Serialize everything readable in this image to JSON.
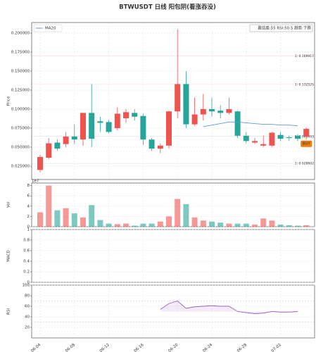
{
  "chart_data": [
    {
      "type": "candlestick",
      "title": "BTWUSDT  日线  阳包阴(看涨吞没)",
      "ylabel": "Price",
      "categories": [
        "06-04",
        null,
        null,
        null,
        "06-08",
        null,
        null,
        null,
        "06-12",
        null,
        null,
        null,
        "06-16",
        null,
        null,
        null,
        "06-20",
        null,
        null,
        null,
        "06-24",
        null,
        null,
        null,
        "06-28",
        null,
        null,
        null,
        "07-02",
        null,
        null,
        null
      ],
      "open": [
        0.02,
        0.036,
        0.056,
        0.054,
        0.064,
        0.06,
        0.095,
        0.084,
        0.083,
        0.075,
        0.088,
        0.095,
        0.091,
        0.06,
        0.048,
        0.052,
        0.097,
        0.133,
        0.08,
        0.093,
        0.1,
        0.098,
        0.095,
        0.097,
        0.065,
        0.056,
        0.052,
        0.052,
        0.066,
        0.063,
        0.065,
        0.064
      ],
      "high": [
        0.04,
        0.062,
        0.06,
        0.07,
        0.08,
        0.095,
        0.133,
        0.09,
        0.086,
        0.102,
        0.1,
        0.1,
        0.094,
        0.062,
        0.055,
        0.098,
        0.205,
        0.15,
        0.115,
        0.12,
        0.115,
        0.105,
        0.115,
        0.098,
        0.07,
        0.062,
        0.065,
        0.07,
        0.07,
        0.065,
        0.067,
        0.076
      ],
      "low": [
        0.017,
        0.034,
        0.045,
        0.05,
        0.054,
        0.052,
        0.05,
        0.07,
        0.068,
        0.072,
        0.082,
        0.085,
        0.053,
        0.045,
        0.042,
        0.048,
        0.088,
        0.075,
        0.078,
        0.085,
        0.09,
        0.088,
        0.093,
        0.062,
        0.055,
        0.054,
        0.05,
        0.05,
        0.058,
        0.058,
        0.058,
        0.06
      ],
      "close": [
        0.037,
        0.055,
        0.048,
        0.064,
        0.06,
        0.095,
        0.061,
        0.082,
        0.07,
        0.094,
        0.096,
        0.09,
        0.06,
        0.048,
        0.052,
        0.097,
        0.133,
        0.08,
        0.093,
        0.1,
        0.097,
        0.095,
        0.1,
        0.065,
        0.058,
        0.058,
        0.054,
        0.069,
        0.061,
        0.062,
        0.061,
        0.074
      ],
      "up_color": "#ef5350",
      "down_color": "#26a69a",
      "series": [
        {
          "name": "MA20",
          "color": "#5b9bd5",
          "values": [
            null,
            null,
            null,
            null,
            null,
            null,
            null,
            null,
            null,
            null,
            null,
            null,
            null,
            null,
            null,
            null,
            null,
            null,
            null,
            0.077,
            0.079,
            0.081,
            0.083,
            0.083,
            0.082,
            0.081,
            0.08,
            0.08,
            0.079,
            0.079,
            0.078,
            null
          ]
        }
      ],
      "ylim": [
        0.0074,
        0.2139
      ],
      "yticks": [
        {
          "value": 0.025,
          "label": "0.025000"
        },
        {
          "value": 0.05,
          "label": "0.050000"
        },
        {
          "value": 0.075,
          "label": "0.075000"
        },
        {
          "value": 0.1,
          "label": "0.100000"
        },
        {
          "value": 0.125,
          "label": "0.125000"
        },
        {
          "value": 0.15,
          "label": "0.150000"
        },
        {
          "value": 0.175,
          "label": "0.175000"
        },
        {
          "value": 0.2,
          "label": "0.200000"
        }
      ],
      "grid": true,
      "legend": "upper left",
      "info": "置信度:55  RSI:50.5  趋势:下跌",
      "levels": [
        {
          "label": "1: 0.169917",
          "value": 0.169917,
          "color": "#ef5350"
        },
        {
          "label": "1: 0.132525",
          "value": 0.132525,
          "color": "#ef5350"
        },
        {
          "label": "1: 0.064093",
          "value": 0.064093,
          "color": "#666666"
        },
        {
          "label": "1: 0.028602",
          "value": 0.028602,
          "color": "#26a69a"
        }
      ],
      "signal": "BUY"
    },
    {
      "type": "bar",
      "ylabel": "Vol",
      "scale_label": "1e7",
      "values": [
        2.8,
        8.0,
        3.2,
        3.6,
        2.6,
        1.8,
        4.2,
        1.3,
        0.6,
        0.5,
        0.6,
        0.2,
        0.6,
        0.6,
        1.0,
        2.0,
        5.4,
        4.4,
        1.8,
        1.2,
        1.0,
        0.8,
        0.6,
        0.6,
        0.6,
        0.4,
        1.6,
        1.2,
        0.4,
        0.3,
        0.2,
        0.3
      ],
      "ylim": [
        0,
        8.5
      ],
      "yticks": [
        0,
        2,
        4,
        6,
        8
      ],
      "grid": true
    },
    {
      "type": "line",
      "ylabel": "MACD",
      "ylim": [
        0,
        1
      ],
      "yticks": [
        0,
        0.2,
        0.4,
        0.6,
        0.8,
        1
      ],
      "grid": true
    },
    {
      "type": "line",
      "ylabel": "RSI",
      "color": "#9c5fc4",
      "values": [
        null,
        null,
        null,
        null,
        null,
        null,
        null,
        null,
        null,
        null,
        null,
        null,
        null,
        null,
        54,
        65,
        70,
        56,
        59,
        60,
        61,
        60,
        60,
        50,
        48,
        46,
        47,
        50,
        49,
        49,
        50,
        null
      ],
      "ylim": [
        0,
        100
      ],
      "yticks": [
        20,
        40,
        60,
        80,
        100
      ],
      "grid": true
    }
  ]
}
